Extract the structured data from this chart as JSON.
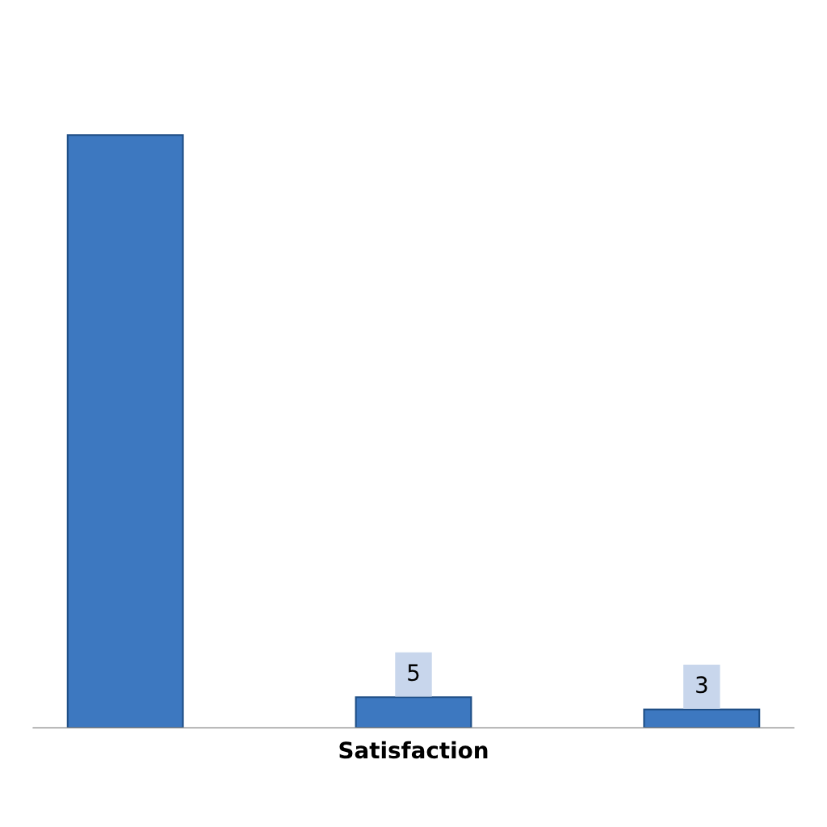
{
  "chart_data": {
    "type": "bar",
    "categories": [
      null,
      "Satisfaction",
      null
    ],
    "values": [
      97,
      5,
      3
    ],
    "color": "#3d78c0",
    "value_labels": [
      null,
      "5",
      "3"
    ],
    "grid": false,
    "legend": false
  }
}
